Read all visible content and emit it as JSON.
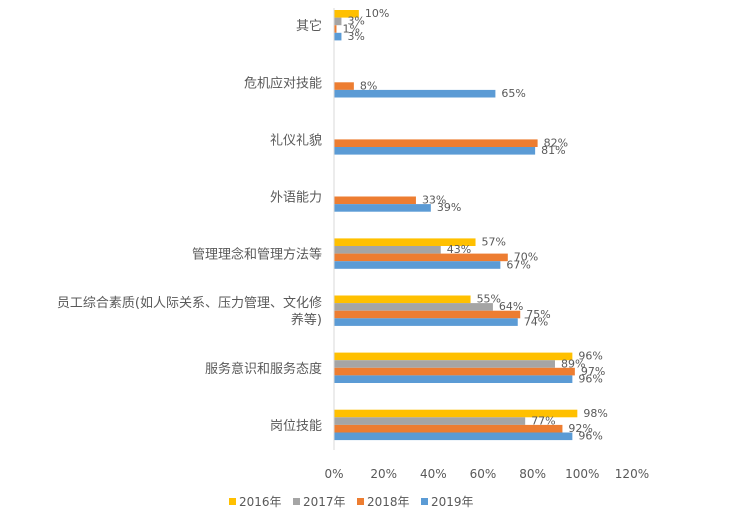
{
  "chart_data": {
    "type": "bar",
    "orientation": "horizontal",
    "categories": [
      "其它",
      "危机应对技能",
      "礼仪礼貌",
      "外语能力",
      "管理理念和管理方法等",
      "员工综合素质(如人际关系、压力管理、文化修养等)",
      "服务意识和服务态度",
      "岗位技能"
    ],
    "category_lines": [
      [
        "其它"
      ],
      [
        "危机应对技能"
      ],
      [
        "礼仪礼貌"
      ],
      [
        "外语能力"
      ],
      [
        "管理理念和管理方法等"
      ],
      [
        "员工综合素质(如人际关系、压力管理、文化修",
        "养等)"
      ],
      [
        "服务意识和服务态度"
      ],
      [
        "岗位技能"
      ]
    ],
    "series": [
      {
        "name": "2016年",
        "color": "#FFC000",
        "values": [
          10,
          null,
          null,
          null,
          57,
          55,
          96,
          98
        ]
      },
      {
        "name": "2017年",
        "color": "#A5A5A5",
        "values": [
          3,
          null,
          null,
          null,
          43,
          64,
          89,
          77
        ]
      },
      {
        "name": "2018年",
        "color": "#ED7D31",
        "values": [
          1,
          8,
          82,
          33,
          70,
          75,
          97,
          92
        ]
      },
      {
        "name": "2019年",
        "color": "#5B9BD5",
        "values": [
          3,
          65,
          81,
          39,
          67,
          74,
          96,
          96
        ]
      }
    ],
    "x_ticks": [
      "0%",
      "20%",
      "40%",
      "60%",
      "80%",
      "100%",
      "120%"
    ],
    "xlim": [
      0,
      120
    ],
    "value_suffix": "%",
    "grid": false,
    "legend_position": "bottom",
    "axis_color": "#D9D9D9"
  }
}
